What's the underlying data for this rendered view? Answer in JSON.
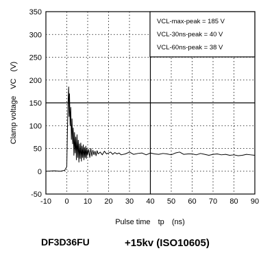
{
  "chart_data": {
    "type": "line",
    "title": "",
    "xlabel": "Pulse time",
    "xlabel_symbol": "tp",
    "xlabel_unit": "(ns)",
    "ylabel": "Clamp voltage",
    "ylabel_symbol": "VC",
    "ylabel_unit": "(V)",
    "xlim": [
      -10,
      90
    ],
    "ylim": [
      -50,
      350
    ],
    "xticks": [
      "-10",
      "0",
      "10",
      "20",
      "30",
      "40",
      "50",
      "60",
      "70",
      "80",
      "90"
    ],
    "yticks": [
      "-50",
      "0",
      "50",
      "100",
      "150",
      "200",
      "250",
      "300",
      "350"
    ],
    "grid": true,
    "legend_position": "top-right",
    "annotations": [
      "VCL-max-peak = 185 V",
      "VCL-30ns-peak = 40 V",
      "VCL-60ns-peak = 38 V"
    ],
    "caption_left": "DF3D36FU",
    "caption_right": "+15kv (ISO10605)",
    "series": [
      {
        "color": "#000000",
        "x": [
          -10,
          -6,
          -3,
          -1,
          0,
          0.3,
          0.6,
          0.9,
          1.1,
          1.3,
          1.6,
          1.9,
          2.2,
          2.5,
          2.8,
          3.1,
          3.4,
          3.7,
          4.0,
          4.3,
          4.6,
          4.9,
          5.2,
          5.5,
          5.8,
          6.1,
          6.4,
          6.7,
          7.0,
          7.3,
          7.6,
          7.9,
          8.2,
          8.5,
          8.8,
          9.1,
          9.4,
          9.7,
          10.0,
          10.5,
          11,
          11.5,
          12,
          12.5,
          13,
          13.5,
          14,
          14.5,
          15,
          16,
          17,
          18,
          19,
          20,
          21,
          22,
          23,
          24,
          25,
          26,
          28,
          30,
          32,
          34,
          36,
          38,
          40,
          42,
          44,
          46,
          48,
          50,
          52,
          54,
          56,
          58,
          60,
          62,
          64,
          66,
          68,
          70,
          72,
          74,
          76,
          78,
          80,
          82,
          84,
          86,
          88,
          90
        ],
        "y": [
          0,
          1,
          0,
          2,
          10,
          90,
          150,
          185,
          120,
          170,
          100,
          140,
          70,
          115,
          60,
          95,
          35,
          85,
          40,
          75,
          25,
          80,
          30,
          68,
          20,
          60,
          28,
          62,
          22,
          55,
          30,
          58,
          25,
          52,
          30,
          55,
          28,
          50,
          35,
          48,
          30,
          50,
          33,
          46,
          36,
          44,
          34,
          45,
          38,
          42,
          36,
          44,
          38,
          40,
          42,
          37,
          41,
          38,
          40,
          36,
          38,
          42,
          37,
          39,
          40,
          36,
          40,
          38,
          37,
          39,
          38,
          36,
          40,
          42,
          37,
          38,
          38,
          36,
          39,
          37,
          35,
          37,
          38,
          36,
          37,
          35,
          36,
          34,
          35,
          37,
          36,
          35
        ]
      }
    ]
  }
}
